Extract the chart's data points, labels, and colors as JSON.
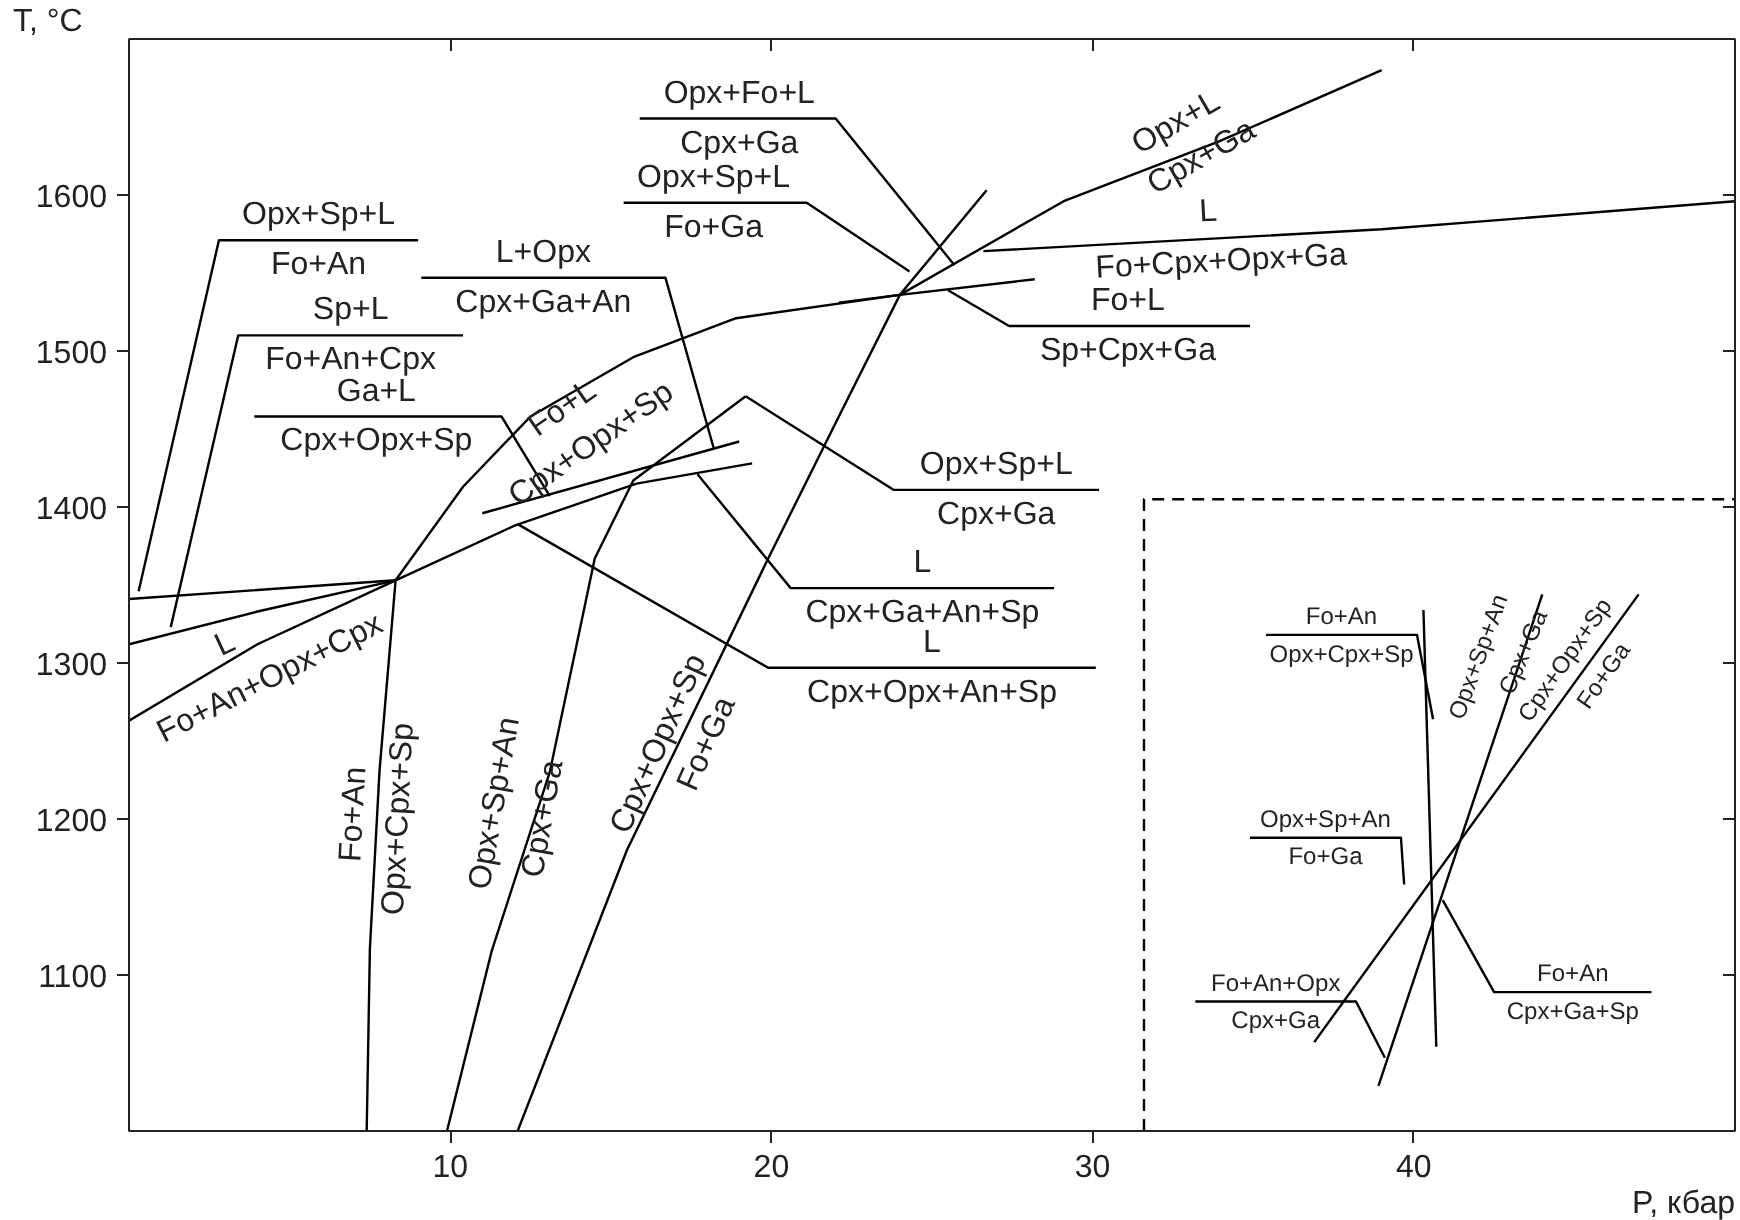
{
  "chart_data": {
    "type": "line",
    "xlabel": "P, кбар",
    "ylabel": "T, °C",
    "xlim": [
      0,
      50
    ],
    "ylim": [
      1000,
      1700
    ],
    "xticks": [
      10,
      20,
      30,
      40
    ],
    "yticks": [
      1100,
      1200,
      1300,
      1400,
      1500,
      1600
    ],
    "grid": false,
    "marker": "none",
    "line_style": "solid",
    "series": [
      {
        "color": "#000000",
        "x": [
          0,
          8.3,
          12.0,
          15.8,
          19.4
        ],
        "values": [
          1341,
          1353,
          1388,
          1415,
          1428
        ]
      },
      {
        "color": "#000000",
        "x": [
          0,
          4,
          8.3
        ],
        "values": [
          1312,
          1333,
          1353
        ]
      },
      {
        "color": "#000000",
        "x": [
          0,
          4,
          8.3
        ],
        "values": [
          1263,
          1312,
          1353
        ]
      },
      {
        "color": "#000000",
        "x": [
          8.3,
          10.4,
          12.5,
          15.7,
          18.9,
          24.0,
          29.1,
          33.9,
          39.0
        ],
        "values": [
          1353,
          1413,
          1458,
          1496,
          1521,
          1536,
          1596,
          1634,
          1680
        ]
      },
      {
        "color": "#000000",
        "x": [
          11.0,
          19.0
        ],
        "values": [
          1396,
          1442
        ]
      },
      {
        "color": "#000000",
        "x": [
          12.1,
          15.5,
          19.9,
          22.1,
          24.0,
          26.7
        ],
        "values": [
          1000,
          1180,
          1367,
          1458,
          1536,
          1603
        ]
      },
      {
        "color": "#000000",
        "x": [
          26.6,
          39,
          50
        ],
        "values": [
          1564,
          1578,
          1596
        ]
      },
      {
        "color": "#000000",
        "x": [
          22.1,
          24.0,
          28.2
        ],
        "values": [
          1531,
          1536,
          1546
        ]
      },
      {
        "color": "#000000",
        "x": [
          8.3,
          7.8,
          7.5,
          7.4
        ],
        "values": [
          1353,
          1231,
          1117,
          1000
        ]
      },
      {
        "color": "#000000",
        "x": [
          9.9,
          11.3,
          13.1,
          14.5,
          15.7,
          19.2
        ],
        "values": [
          1000,
          1116,
          1230,
          1367,
          1417,
          1471
        ]
      },
      {
        "color": "#000000",
        "x": [
          9.0,
          2.8,
          0.3
        ],
        "values": [
          1571,
          1571,
          1346
        ]
      },
      {
        "color": "#000000",
        "x": [
          10.4,
          3.4,
          1.3
        ],
        "values": [
          1510,
          1510,
          1323
        ]
      },
      {
        "color": "#000000",
        "x": [
          3.9,
          11.6,
          13.1
        ],
        "values": [
          1458,
          1458,
          1407
        ]
      },
      {
        "color": "#000000",
        "x": [
          9.1,
          16.7,
          18.2
        ],
        "values": [
          1547,
          1547,
          1438
        ]
      },
      {
        "color": "#000000",
        "x": [
          15.9,
          22.0,
          25.7
        ],
        "values": [
          1649,
          1649,
          1555
        ]
      },
      {
        "color": "#000000",
        "x": [
          15.4,
          21.1,
          24.3
        ],
        "values": [
          1595,
          1595,
          1551
        ]
      },
      {
        "color": "#000000",
        "x": [
          34.9,
          27.4,
          25.5
        ],
        "values": [
          1516,
          1516,
          1539
        ]
      },
      {
        "color": "#000000",
        "x": [
          30.2,
          23.8,
          19.2
        ],
        "values": [
          1411,
          1411,
          1471
        ]
      },
      {
        "color": "#000000",
        "x": [
          28.8,
          20.6,
          17.7
        ],
        "values": [
          1348,
          1348,
          1421
        ]
      },
      {
        "color": "#000000",
        "x": [
          30.1,
          19.9,
          12.1
        ],
        "values": [
          1297,
          1297,
          1389
        ]
      },
      {
        "color": "#000000",
        "x": [
          31.6,
          31.6,
          50
        ],
        "values": [
          1000,
          1405,
          1405
        ],
        "line_style": "dashed"
      },
      {
        "color": "#000000",
        "x": [
          40.3,
          40.7
        ],
        "values": [
          1334,
          1054
        ]
      },
      {
        "color": "#000000",
        "x": [
          44.0,
          38.9
        ],
        "values": [
          1344,
          1029
        ]
      },
      {
        "color": "#000000",
        "x": [
          47.0,
          36.9
        ],
        "values": [
          1344,
          1057
        ]
      },
      {
        "color": "#000000",
        "x": [
          35.4,
          40.1,
          40.6
        ],
        "values": [
          1318,
          1318,
          1264
        ]
      },
      {
        "color": "#000000",
        "x": [
          34.9,
          39.6,
          39.7
        ],
        "values": [
          1188,
          1188,
          1158
        ]
      },
      {
        "color": "#000000",
        "x": [
          33.2,
          38.2,
          39.1
        ],
        "values": [
          1083,
          1083,
          1047
        ]
      },
      {
        "color": "#000000",
        "x": [
          47.4,
          42.5,
          40.9
        ],
        "values": [
          1089,
          1089,
          1148
        ]
      }
    ],
    "annotations": [
      "Opx+Sp+L",
      "Fo+An",
      "Sp+L",
      "Fo+An+Cpx",
      "Ga+L",
      "Cpx+Opx+Sp",
      "L+Opx",
      "Cpx+Ga+An",
      "Opx+Fo+L",
      "Cpx+Ga",
      "Opx+Sp+L",
      "Fo+Ga",
      "Fo+L",
      "Sp+Cpx+Ga",
      "Opx+Sp+L",
      "Cpx+Ga",
      "L",
      "Cpx+Ga+An+Sp",
      "L",
      "Cpx+Opx+An+Sp",
      "Fo+L",
      "Cpx+Opx+Sp",
      "Opx+L",
      "Cpx+Ga",
      "L",
      "Fo+Cpx+Opx+Ga",
      "L",
      "Fo+An+Opx+Cpx",
      "Fo+An",
      "Opx+Cpx+Sp",
      "Opx+Sp+An",
      "Cpx+Ga",
      "Cpx+Opx+Sp",
      "Fo+Ga",
      "Fo+An",
      "Opx+Cpx+Sp",
      "Opx+Sp+An",
      "Fo+Ga",
      "Fo+An+Opx",
      "Cpx+Ga",
      "Fo+An",
      "Cpx+Ga+Sp",
      "Opx+Sp+An",
      "Cpx+Ga",
      "Cpx+Opx+Sp",
      "Fo+Ga"
    ]
  }
}
